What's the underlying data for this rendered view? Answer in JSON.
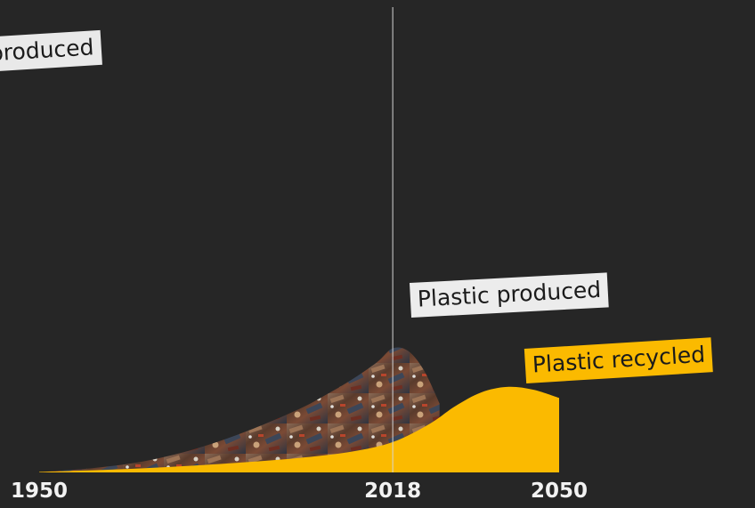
{
  "chart_data": {
    "type": "area",
    "xlim": [
      1950,
      2050
    ],
    "x_ticks": [
      "1950",
      "2018",
      "2050"
    ],
    "marker_year": 2018,
    "series": [
      {
        "name": "Plastic produced",
        "color": "#6b4a3a",
        "fill_style": "photo-texture",
        "x": [
          1950,
          1960,
          1970,
          1980,
          1990,
          2000,
          2005,
          2010,
          2015,
          2018,
          2021,
          2024,
          2027
        ],
        "y": [
          0.3,
          3,
          8,
          17,
          30,
          46,
          56,
          67,
          80,
          90,
          88,
          74,
          50
        ]
      },
      {
        "name": "Plastic recycled",
        "color": "#fbba00",
        "x": [
          1950,
          1960,
          1970,
          1980,
          1990,
          2000,
          2010,
          2018,
          2025,
          2030,
          2035,
          2040,
          2045,
          2050
        ],
        "y": [
          0.3,
          1.5,
          3,
          5,
          7.5,
          10.5,
          15,
          22,
          35,
          48,
          58,
          62,
          60,
          54
        ]
      }
    ],
    "labels": {
      "cut_off": "produced",
      "produced": "Plastic produced",
      "recycled": "Plastic recycled"
    }
  }
}
